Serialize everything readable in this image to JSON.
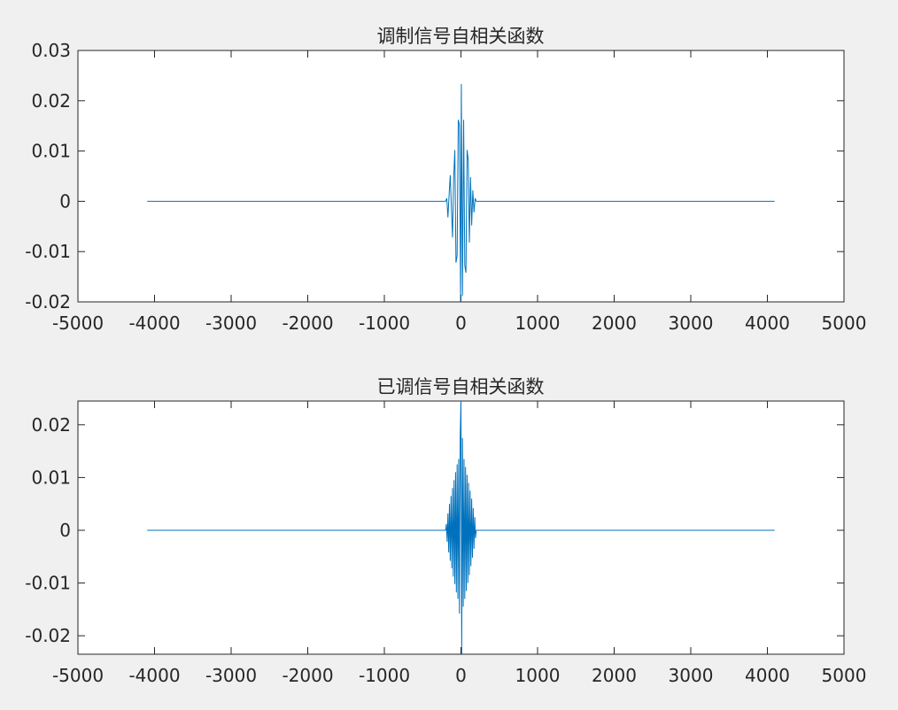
{
  "figure": {
    "background": "#f0f0f0",
    "axes_background": "#ffffff",
    "axis_color": "#262626",
    "line_color": "#0072bd"
  },
  "chart_data": [
    {
      "type": "line",
      "title": "调制信号自相关函数",
      "xlabel": "",
      "ylabel": "",
      "xlim": [
        -5000,
        5000
      ],
      "ylim": [
        -0.02,
        0.03
      ],
      "xticks": [
        -5000,
        -4000,
        -3000,
        -2000,
        -1000,
        0,
        1000,
        2000,
        3000,
        4000,
        5000
      ],
      "xtick_labels": [
        "-5000",
        "-4000",
        "-3000",
        "-2000",
        "-1000",
        "0",
        "1000",
        "2000",
        "3000",
        "4000",
        "5000"
      ],
      "yticks": [
        -0.02,
        -0.01,
        0,
        0.01,
        0.02,
        0.03
      ],
      "ytick_labels": [
        "-0.02",
        "-0.01",
        "0",
        "0.01",
        "0.02",
        "0.03"
      ],
      "grid": false,
      "series": [
        {
          "x": [
            -4095,
            -200,
            -185,
            -170,
            -155,
            -140,
            -125,
            -110,
            -95,
            -80,
            -65,
            -50,
            -35,
            -20,
            -5,
            5,
            20,
            35,
            50,
            65,
            80,
            95,
            110,
            125,
            140,
            155,
            170,
            185,
            200,
            4095
          ],
          "y": [
            0,
            0,
            0.0006,
            -0.0032,
            0.0012,
            0.0052,
            -0.0012,
            -0.0072,
            0.0048,
            0.0102,
            -0.0122,
            -0.0108,
            0.0162,
            0.0152,
            -0.0215,
            0.0233,
            -0.0188,
            0.0162,
            -0.0128,
            -0.0142,
            0.0102,
            0.0082,
            -0.0082,
            0.0048,
            -0.0048,
            0.0022,
            -0.0022,
            0.0006,
            0,
            0
          ]
        }
      ]
    },
    {
      "type": "line",
      "title": "已调信号自相关函数",
      "xlabel": "",
      "ylabel": "",
      "xlim": [
        -5000,
        5000
      ],
      "ylim": [
        -0.0235,
        0.0245
      ],
      "xticks": [
        -5000,
        -4000,
        -3000,
        -2000,
        -1000,
        0,
        1000,
        2000,
        3000,
        4000,
        5000
      ],
      "xtick_labels": [
        "-5000",
        "-4000",
        "-3000",
        "-2000",
        "-1000",
        "0",
        "1000",
        "2000",
        "3000",
        "4000",
        "5000"
      ],
      "yticks": [
        -0.02,
        -0.01,
        0,
        0.01,
        0.02
      ],
      "ytick_labels": [
        "-0.02",
        "-0.01",
        "0",
        "0.01",
        "0.02"
      ],
      "grid": false,
      "series": [
        {
          "x": [
            -4095,
            -200,
            -190,
            -180,
            -170,
            -160,
            -150,
            -140,
            -130,
            -120,
            -110,
            -100,
            -90,
            -80,
            -70,
            -60,
            -50,
            -40,
            -30,
            -20,
            -10,
            0,
            10,
            20,
            30,
            40,
            50,
            60,
            70,
            80,
            90,
            100,
            110,
            120,
            130,
            140,
            150,
            160,
            170,
            180,
            190,
            200,
            4095
          ],
          "y": [
            0,
            0,
            0.0012,
            -0.0022,
            0.0032,
            -0.0042,
            0.005,
            -0.0058,
            0.0065,
            -0.0072,
            0.008,
            -0.0088,
            0.0095,
            -0.0102,
            0.011,
            -0.0118,
            0.0125,
            -0.013,
            0.0135,
            -0.0158,
            0.0175,
            0.0245,
            -0.0235,
            0.0175,
            -0.0145,
            0.0135,
            -0.013,
            0.012,
            -0.0115,
            0.0105,
            -0.01,
            0.009,
            -0.0085,
            0.0075,
            -0.0068,
            0.006,
            -0.0052,
            0.0042,
            -0.0035,
            0.0025,
            -0.0015,
            0,
            0
          ]
        }
      ]
    }
  ]
}
